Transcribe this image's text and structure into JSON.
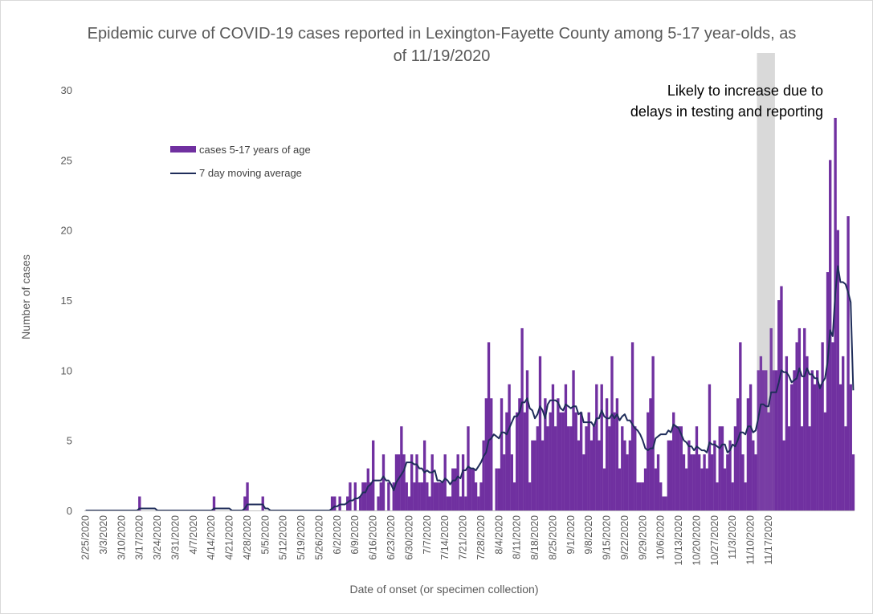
{
  "chart_data": {
    "type": "bar",
    "title": "Epidemic curve of COVID-19 cases reported in Lexington-Fayette County among 5-17 year-olds, as of 11/19/2020",
    "xlabel": "Date of onset (or specimen collection)",
    "ylabel": "Number of cases",
    "ylim": [
      0,
      30
    ],
    "yticks": [
      0,
      5,
      10,
      15,
      20,
      25,
      30
    ],
    "x_start": "2/25/2020",
    "x_end": "11/19/2020",
    "xtick_labels": [
      "2/25/2020",
      "3/3/2020",
      "3/10/2020",
      "3/17/2020",
      "3/24/2020",
      "3/31/2020",
      "4/7/2020",
      "4/14/2020",
      "4/21/2020",
      "4/28/2020",
      "5/5/2020",
      "5/12/2020",
      "5/19/2020",
      "5/26/2020",
      "6/2/2020",
      "6/9/2020",
      "6/16/2020",
      "6/23/2020",
      "6/30/2020",
      "7/7/2020",
      "7/14/2020",
      "7/21/2020",
      "7/28/2020",
      "8/4/2020",
      "8/11/2020",
      "8/18/2020",
      "8/25/2020",
      "9/1/2020",
      "9/8/2020",
      "9/15/2020",
      "9/22/2020",
      "9/29/2020",
      "10/6/2020",
      "10/13/2020",
      "10/20/2020",
      "10/27/2020",
      "11/3/2020",
      "11/10/2020",
      "11/17/2020"
    ],
    "legend_position": "upper-left",
    "grid": false,
    "annotation": "Likely to increase due to delays in testing and reporting",
    "shaded_region": [
      "11/13/2020",
      "11/19/2020"
    ],
    "colors": {
      "bars": "#7030a0",
      "line": "#1f2d5a",
      "shade": "#d9d9d9"
    },
    "series": [
      {
        "name": "cases 5-17 years of age",
        "kind": "bar",
        "values": [
          0,
          0,
          0,
          0,
          0,
          0,
          0,
          0,
          0,
          0,
          0,
          0,
          0,
          0,
          0,
          0,
          0,
          0,
          0,
          0,
          0,
          1,
          0,
          0,
          0,
          0,
          0,
          0,
          0,
          0,
          0,
          0,
          0,
          0,
          0,
          0,
          0,
          0,
          0,
          0,
          0,
          0,
          0,
          0,
          0,
          0,
          0,
          0,
          0,
          0,
          1,
          0,
          0,
          0,
          0,
          0,
          0,
          0,
          0,
          0,
          0,
          0,
          1,
          2,
          0,
          0,
          0,
          0,
          0,
          1,
          0,
          0,
          0,
          0,
          0,
          0,
          0,
          0,
          0,
          0,
          0,
          0,
          0,
          0,
          0,
          0,
          0,
          0,
          0,
          0,
          0,
          0,
          0,
          0,
          0,
          0,
          1,
          1,
          0,
          1,
          0,
          0,
          1,
          2,
          0,
          2,
          0,
          1,
          2,
          2,
          3,
          2,
          5,
          0,
          1,
          2,
          4,
          0,
          2,
          0,
          2,
          4,
          4,
          6,
          4,
          2,
          1,
          4,
          2,
          4,
          2,
          2,
          5,
          2,
          1,
          4,
          2,
          2,
          2,
          2,
          4,
          1,
          1,
          3,
          3,
          4,
          1,
          4,
          1,
          6,
          3,
          3,
          2,
          1,
          2,
          5,
          8,
          12,
          8,
          0,
          3,
          3,
          8,
          4,
          7,
          9,
          4,
          2,
          7,
          8,
          13,
          7,
          10,
          2,
          5,
          5,
          6,
          11,
          5,
          8,
          6,
          7,
          9,
          6,
          8,
          7,
          7,
          9,
          6,
          6,
          10,
          7,
          5,
          7,
          4,
          6,
          7,
          5,
          6,
          9,
          5,
          9,
          3,
          8,
          6,
          11,
          7,
          8,
          3,
          6,
          5,
          4,
          5,
          12,
          6,
          2,
          2,
          2,
          3,
          7,
          8,
          11,
          3,
          4,
          2,
          1,
          1,
          5,
          5,
          7,
          6,
          6,
          6,
          4,
          3,
          5,
          4,
          4,
          6,
          4,
          3,
          4,
          3,
          9,
          4,
          5,
          2,
          6,
          6,
          3,
          4,
          5,
          2,
          6,
          8,
          12,
          4,
          2,
          8,
          9,
          5,
          4,
          10,
          11,
          10,
          10,
          7,
          13,
          10,
          10,
          15,
          16,
          5,
          11,
          6,
          9,
          10,
          12,
          13,
          6,
          13,
          11,
          6,
          10,
          9,
          10,
          9,
          12,
          7,
          17,
          25,
          12,
          28,
          20,
          9,
          11,
          6,
          21,
          9,
          4
        ]
      },
      {
        "name": "7 day moving average",
        "kind": "line",
        "values": [
          0,
          0,
          0,
          0,
          0,
          0,
          0,
          0,
          0,
          0,
          0,
          0,
          0,
          0,
          0,
          0,
          0,
          0,
          0,
          0,
          0,
          0.14,
          0.14,
          0.14,
          0.14,
          0.14,
          0.14,
          0.14,
          0,
          0,
          0,
          0,
          0,
          0,
          0,
          0,
          0,
          0,
          0,
          0,
          0,
          0,
          0,
          0,
          0,
          0,
          0,
          0,
          0,
          0,
          0.14,
          0.14,
          0.14,
          0.14,
          0.14,
          0.14,
          0.14,
          0,
          0,
          0,
          0,
          0,
          0.14,
          0.43,
          0.43,
          0.43,
          0.43,
          0.43,
          0.43,
          0.43,
          0.14,
          0.14,
          0,
          0,
          0,
          0,
          0,
          0,
          0,
          0,
          0,
          0,
          0,
          0,
          0,
          0,
          0,
          0,
          0,
          0,
          0,
          0,
          0,
          0,
          0,
          0,
          0.14,
          0.29,
          0.29,
          0.43,
          0.43,
          0.43,
          0.57,
          0.71,
          0.71,
          0.86,
          0.86,
          1,
          1.29,
          1.29,
          1.71,
          1.86,
          2.14,
          2.14,
          2.14,
          2.14,
          2.43,
          2.14,
          2.14,
          1.86,
          1.43,
          2,
          2.29,
          2.57,
          2.86,
          3.43,
          3.43,
          3.43,
          3.29,
          3.29,
          3,
          3,
          2.71,
          2.86,
          2.71,
          2.71,
          2.86,
          2.14,
          2.14,
          2,
          2.29,
          2.14,
          1.86,
          2.14,
          2.14,
          2.43,
          2.29,
          2.86,
          2.86,
          3.14,
          3,
          3,
          2.86,
          3.14,
          3.43,
          3.86,
          4.14,
          5,
          5.14,
          5.43,
          5.29,
          5.14,
          5.57,
          5.57,
          5.43,
          5.86,
          6.29,
          6.71,
          6.71,
          7,
          7.71,
          7.71,
          8,
          7.29,
          7.14,
          6.57,
          6.86,
          7.43,
          7.14,
          6.57,
          7.57,
          7.86,
          7.86,
          7.86,
          7.71,
          7.29,
          7.14,
          7.57,
          7.43,
          7.29,
          7.43,
          7.43,
          6.86,
          7,
          6.29,
          6.29,
          6.29,
          6.29,
          6,
          6.57,
          6.57,
          7.14,
          6.71,
          6.57,
          6.57,
          6.86,
          6.57,
          6.86,
          6.43,
          6.71,
          6.86,
          6.43,
          6.43,
          6.14,
          5.86,
          5.71,
          5.43,
          5,
          4.43,
          4.29,
          4.43,
          4.43,
          5.14,
          5.29,
          5.43,
          5.43,
          5.43,
          5.71,
          5.57,
          6.14,
          6,
          5.86,
          5.43,
          5,
          4.86,
          4.57,
          4.57,
          4.29,
          4.57,
          4.43,
          4.29,
          4.29,
          4.14,
          4.86,
          4.71,
          4.71,
          4.57,
          4.43,
          4.71,
          4.71,
          4.14,
          4.29,
          4.71,
          4.57,
          5,
          5.57,
          5.57,
          5.43,
          6,
          6,
          5.57,
          5.71,
          6.57,
          7.57,
          7.57,
          7.43,
          7.43,
          8.43,
          8.43,
          8.43,
          9.14,
          10,
          9.86,
          9.86,
          9.57,
          9.14,
          9.29,
          9.43,
          10.14,
          9.57,
          9.57,
          10.14,
          9.71,
          9.71,
          9.43,
          9.43,
          8.71,
          9.14,
          9.43,
          10.57,
          12.86,
          12.43,
          15.43,
          17.43,
          16.29,
          16.29,
          16.14,
          15.57,
          14.86,
          8.57
        ]
      }
    ]
  },
  "legend": [
    {
      "label": "cases 5-17 years of age",
      "color": "#7030a0"
    },
    {
      "label": "7 day moving average",
      "color": "#1f2d5a"
    }
  ]
}
